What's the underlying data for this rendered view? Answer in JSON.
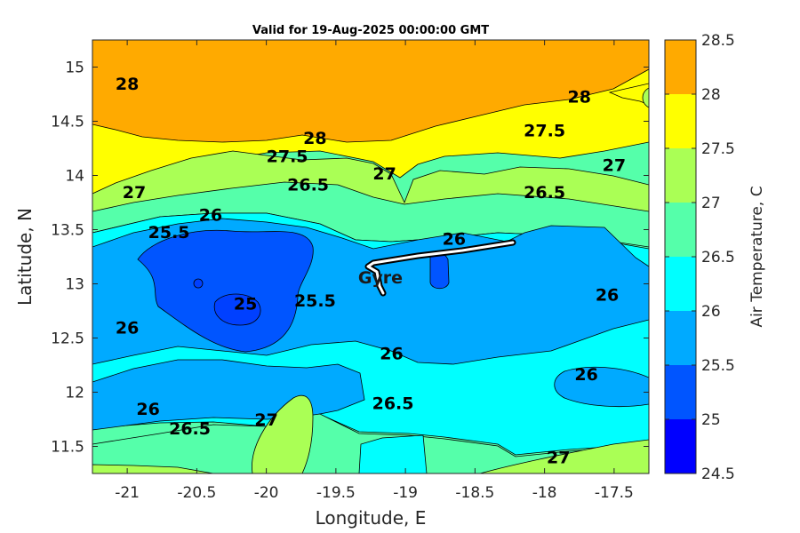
{
  "chart_data": {
    "type": "heatmap",
    "subtype": "filled-contour",
    "title": "Valid for 19-Aug-2025 00:00:00 GMT",
    "xlabel": "Longitude, E",
    "ylabel": "Latitude, N",
    "xlim": [
      -21.25,
      -17.25
    ],
    "ylim": [
      11.25,
      15.25
    ],
    "x_ticks": [
      -21,
      -20.5,
      -20,
      -19.5,
      -19,
      -18.5,
      -18,
      -17.5
    ],
    "x_tick_labels": [
      "-21",
      "-20.5",
      "-20",
      "-19.5",
      "-19",
      "-18.5",
      "-18",
      "-17.5"
    ],
    "y_ticks": [
      11.5,
      12,
      12.5,
      13,
      13.5,
      14,
      14.5,
      15
    ],
    "y_tick_labels": [
      "11.5",
      "12",
      "12.5",
      "13",
      "13.5",
      "14",
      "14.5",
      "15"
    ],
    "grid": false,
    "colorbar": {
      "label": "Air Temperature, C",
      "levels": [
        24.5,
        25,
        25.5,
        26,
        26.5,
        27,
        27.5,
        28,
        28.5
      ],
      "tick_labels": [
        "24.5",
        "25",
        "25.5",
        "26",
        "26.5",
        "27",
        "27.5",
        "28",
        "28.5"
      ],
      "colors": [
        "#0000ff",
        "#0055ff",
        "#00aaff",
        "#00ffff",
        "#55ffaa",
        "#aaff55",
        "#ffff00",
        "#ffaa00",
        "#ff5500"
      ]
    },
    "contour_labels": [
      {
        "text": "28",
        "lon": -21.0,
        "lat": 14.85
      },
      {
        "text": "28",
        "lon": -19.65,
        "lat": 14.35
      },
      {
        "text": "28",
        "lon": -17.75,
        "lat": 14.73
      },
      {
        "text": "27.5",
        "lon": -19.85,
        "lat": 14.18
      },
      {
        "text": "27.5",
        "lon": -18.0,
        "lat": 14.42
      },
      {
        "text": "27",
        "lon": -19.15,
        "lat": 14.02
      },
      {
        "text": "27",
        "lon": -17.5,
        "lat": 14.1
      },
      {
        "text": "27",
        "lon": -20.95,
        "lat": 13.85
      },
      {
        "text": "26.5",
        "lon": -19.7,
        "lat": 13.92
      },
      {
        "text": "26.5",
        "lon": -18.0,
        "lat": 13.85
      },
      {
        "text": "26",
        "lon": -20.4,
        "lat": 13.64
      },
      {
        "text": "26",
        "lon": -18.65,
        "lat": 13.42
      },
      {
        "text": "26",
        "lon": -17.55,
        "lat": 12.9
      },
      {
        "text": "26",
        "lon": -21.0,
        "lat": 12.6
      },
      {
        "text": "26",
        "lon": -19.1,
        "lat": 12.36
      },
      {
        "text": "26",
        "lon": -17.7,
        "lat": 12.17
      },
      {
        "text": "26",
        "lon": -20.85,
        "lat": 11.85
      },
      {
        "text": "25.5",
        "lon": -20.7,
        "lat": 13.48
      },
      {
        "text": "25.5",
        "lon": -19.65,
        "lat": 12.85
      },
      {
        "text": "25",
        "lon": -20.15,
        "lat": 12.82
      },
      {
        "text": "26.5",
        "lon": -19.09,
        "lat": 11.9
      },
      {
        "text": "26.5",
        "lon": -20.55,
        "lat": 11.67
      },
      {
        "text": "27",
        "lon": -20.0,
        "lat": 11.75
      },
      {
        "text": "27",
        "lon": -17.9,
        "lat": 11.4
      }
    ],
    "annotations": [
      {
        "text": "Gyre",
        "lon": -19.18,
        "lat": 13.06
      }
    ]
  }
}
